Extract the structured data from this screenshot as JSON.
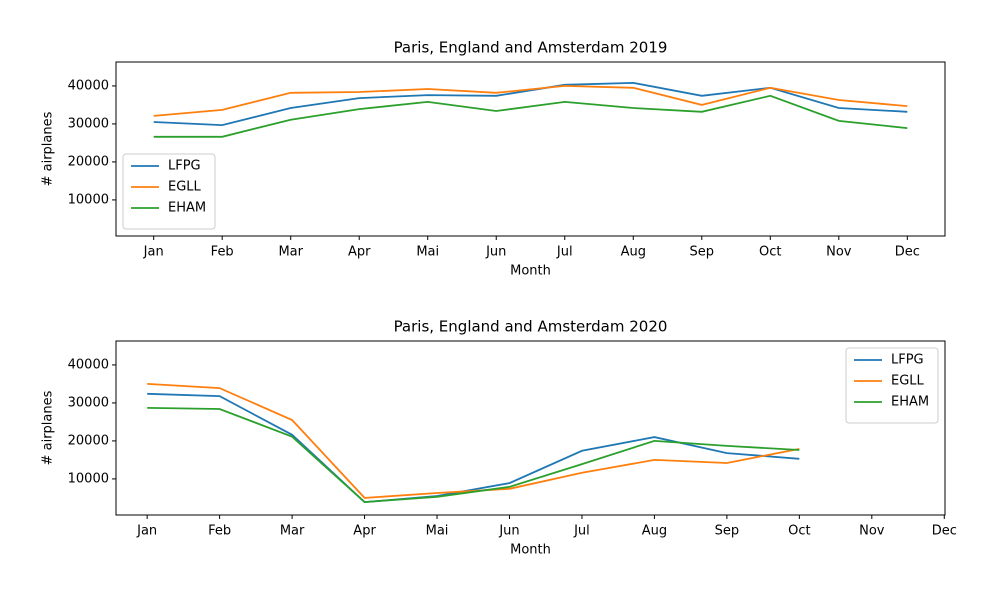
{
  "chart_data": [
    {
      "type": "line",
      "title": "Paris, England and Amsterdam 2019",
      "x_label": "Month",
      "y_label": "# airplanes",
      "categories": [
        "Jan",
        "Feb",
        "Mar",
        "Apr",
        "Mai",
        "Jun",
        "Jul",
        "Aug",
        "Sep",
        "Oct",
        "Nov",
        "Dec"
      ],
      "xlim": [
        -0.55,
        11.55
      ],
      "ylim": [
        500,
        46300
      ],
      "yticks": [
        10000,
        20000,
        30000,
        40000
      ],
      "legend": "lower left",
      "series": [
        {
          "name": "LFPG",
          "color": "#1f77b4",
          "values": [
            30500,
            29700,
            34200,
            36800,
            37600,
            37400,
            40300,
            40800,
            37400,
            39500,
            34200,
            33200
          ]
        },
        {
          "name": "EGLL",
          "color": "#ff7f0e",
          "values": [
            32100,
            33700,
            38200,
            38400,
            39200,
            38200,
            40000,
            39500,
            35000,
            39500,
            36300,
            34700
          ]
        },
        {
          "name": "EHAM",
          "color": "#2ca02c",
          "values": [
            26600,
            26600,
            31100,
            33900,
            35800,
            33400,
            35800,
            34200,
            33200,
            37400,
            30800,
            28900
          ]
        }
      ]
    },
    {
      "type": "line",
      "title": "Paris, England and Amsterdam 2020",
      "x_label": "Month",
      "y_label": "# airplanes",
      "categories": [
        "Jan",
        "Feb",
        "Mar",
        "Apr",
        "Mai",
        "Jun",
        "Jul",
        "Aug",
        "Sep",
        "Oct",
        "Nov",
        "Dec"
      ],
      "xlim": [
        -0.43,
        11.01
      ],
      "ylim": [
        500,
        46300
      ],
      "yticks": [
        10000,
        20000,
        30000,
        40000
      ],
      "legend": "upper right",
      "series": [
        {
          "name": "LFPG",
          "color": "#1f77b4",
          "values": [
            32400,
            31800,
            21600,
            3900,
            5500,
            8900,
            17400,
            21000,
            16800,
            15300,
            null,
            null
          ]
        },
        {
          "name": "EGLL",
          "color": "#ff7f0e",
          "values": [
            35000,
            33900,
            25500,
            5000,
            6300,
            7400,
            11600,
            15000,
            14200,
            17900,
            null,
            null
          ]
        },
        {
          "name": "EHAM",
          "color": "#2ca02c",
          "values": [
            28700,
            28400,
            21100,
            3900,
            5300,
            7900,
            13900,
            20000,
            18700,
            17600,
            null,
            null
          ]
        }
      ]
    }
  ]
}
